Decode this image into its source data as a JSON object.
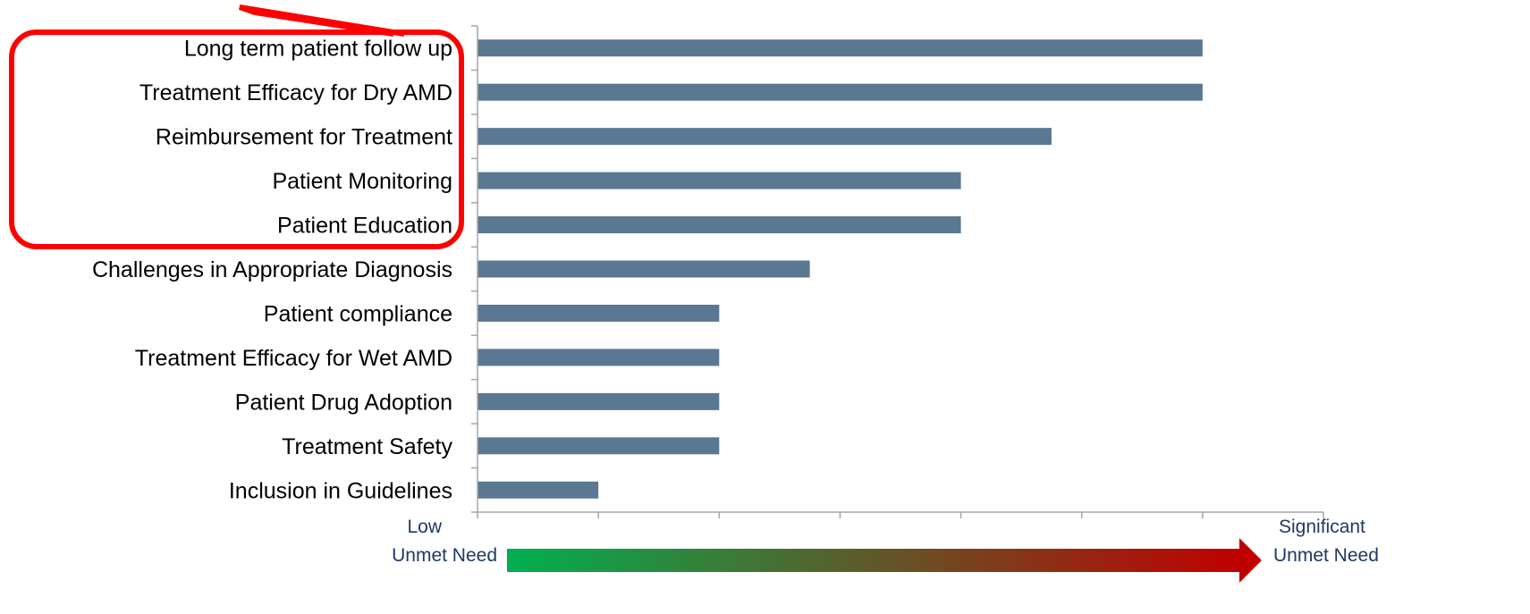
{
  "chart_data": {
    "type": "bar",
    "orientation": "horizontal",
    "categories": [
      "Long term patient follow up",
      "Treatment Efficacy for Dry AMD",
      "Reimbursement for Treatment",
      "Patient Monitoring",
      "Patient Education",
      "Challenges in Appropriate Diagnosis",
      "Patient compliance",
      "Treatment Efficacy for Wet AMD",
      "Patient Drug Adoption",
      "Treatment Safety",
      "Inclusion in Guidelines"
    ],
    "values": [
      6,
      6,
      4.75,
      4,
      4,
      2.75,
      2,
      2,
      2,
      2,
      1
    ],
    "xlim": [
      0,
      7
    ],
    "x_tick_count": 7,
    "bar_color": "#5b7893",
    "axis_color": "#a6a6a6",
    "grid": false,
    "highlight_box": {
      "color": "#ff0000",
      "categories": [
        "Long term patient follow up",
        "Treatment Efficacy for Dry AMD",
        "Reimbursement for Treatment",
        "Patient Monitoring",
        "Patient Education"
      ]
    },
    "scale": {
      "low_label_line1": "Low",
      "low_label_line2": "Unmet Need",
      "high_label_line1": "Significant",
      "high_label_line2": "Unmet Need",
      "gradient_start": "#00b050",
      "gradient_end": "#c00000",
      "label_color": "#1f3864"
    }
  }
}
